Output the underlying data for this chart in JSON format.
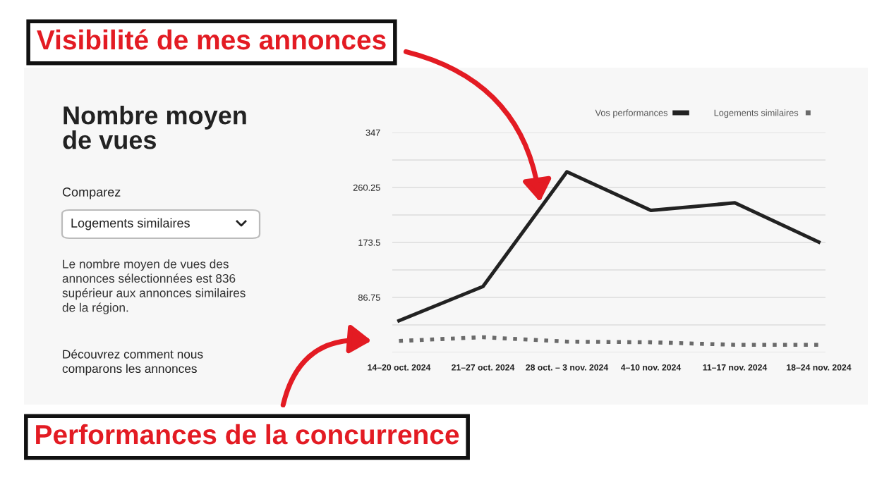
{
  "chart_data": {
    "type": "line",
    "title": "Nombre moyen\nde vues",
    "categories": [
      "14–20 oct. 2024",
      "21–27 oct. 2024",
      "28 oct. – 3 nov. 2024",
      "4–10 nov. 2024",
      "11–17 nov. 2024",
      "18–24 nov. 2024"
    ],
    "series": [
      {
        "name": "Vos performances",
        "color": "#222222",
        "line_style": "solid",
        "values": [
          50,
          104,
          285,
          224,
          236,
          174
        ]
      },
      {
        "name": "Logements similaires",
        "color": "#6a6a6a",
        "line_style": "dotted",
        "values": [
          18,
          24,
          17,
          16,
          12,
          12
        ]
      }
    ],
    "ylim": [
      0,
      347
    ],
    "yticks": [
      {
        "value": 0,
        "label": null
      },
      {
        "value": 43.375,
        "label": null
      },
      86.75,
      {
        "value": 130.125,
        "label": null
      },
      173.5,
      {
        "value": 216.875,
        "label": null
      },
      260.25,
      {
        "value": 303.625,
        "label": null
      },
      347
    ],
    "grid": "y",
    "legend": "top right",
    "marker": "none",
    "annotations": [
      "Comparez",
      "Logements similaires",
      "Le nombre moyen de vues des\nannonces sélectionnées est 836\nsupérieur aux annonces similaires\nde la région.",
      "Découvrez comment nous\ncomparons les annonces",
      "Visibilité de mes annonces",
      "Performances de la concurrence"
    ]
  }
}
